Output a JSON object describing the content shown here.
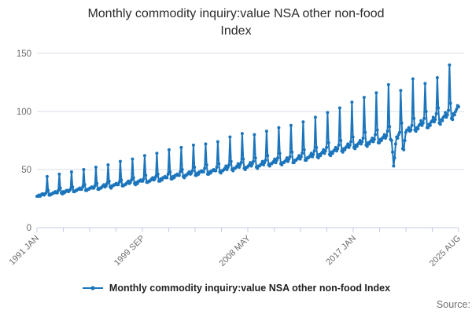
{
  "title": "Monthly commodity inquiry:value NSA other non-food Index",
  "legend": {
    "label": "Monthly commodity inquiry:value NSA other non-food Index"
  },
  "source_label": "Source:",
  "colors": {
    "series": "#1b75bc",
    "grid": "#d8deea",
    "axis": "#c4cee4",
    "axis_label": "#6b6b6b",
    "title_text": "#2b2b2b",
    "legend_text": "#222222",
    "source_text": "#6f6f6f"
  },
  "chart_data": {
    "type": "line",
    "title": "Monthly commodity inquiry:value NSA other non-food Index",
    "series_name": "Monthly commodity inquiry:value NSA other non-food Index",
    "frequency": "monthly",
    "start": "1991 JAN",
    "end": "2025 AUG",
    "xlabel": "",
    "ylabel": "",
    "ylim": [
      0,
      154
    ],
    "y_ticks": [
      0,
      50,
      100,
      150
    ],
    "x_tick_labels": [
      "1991 JAN",
      "1999 SEP",
      "2008 MAY",
      "2017 JAN",
      "2025 AUG"
    ],
    "x_tick_month_indices": [
      0,
      104,
      208,
      312,
      415
    ],
    "minor_tick_count": 17,
    "grid": "horizontal",
    "legend_position": "bottom",
    "values": [
      27,
      27,
      28,
      27,
      28,
      29,
      29,
      28,
      29,
      30,
      44,
      32,
      28,
      28,
      29,
      29,
      30,
      30,
      31,
      30,
      30,
      32,
      46,
      34,
      30,
      29,
      31,
      30,
      31,
      32,
      32,
      31,
      32,
      33,
      48,
      35,
      31,
      31,
      32,
      32,
      33,
      33,
      34,
      33,
      33,
      35,
      50,
      37,
      32,
      32,
      33,
      33,
      34,
      34,
      35,
      34,
      34,
      36,
      52,
      38,
      33,
      33,
      34,
      34,
      35,
      36,
      37,
      35,
      36,
      38,
      54,
      40,
      35,
      34,
      36,
      36,
      37,
      37,
      38,
      37,
      37,
      39,
      57,
      41,
      36,
      36,
      37,
      37,
      38,
      39,
      40,
      38,
      39,
      41,
      59,
      43,
      38,
      37,
      39,
      38,
      40,
      40,
      41,
      40,
      40,
      42,
      62,
      45,
      39,
      39,
      40,
      40,
      41,
      42,
      43,
      41,
      42,
      44,
      64,
      46,
      40,
      40,
      42,
      41,
      43,
      43,
      44,
      43,
      43,
      46,
      67,
      48,
      42,
      42,
      44,
      43,
      45,
      45,
      46,
      45,
      45,
      48,
      69,
      50,
      44,
      43,
      45,
      45,
      46,
      47,
      48,
      46,
      47,
      49,
      71,
      52,
      45,
      45,
      47,
      46,
      48,
      48,
      49,
      48,
      48,
      51,
      72,
      54,
      46,
      46,
      48,
      47,
      49,
      49,
      50,
      49,
      49,
      52,
      74,
      55,
      48,
      47,
      49,
      49,
      50,
      51,
      53,
      50,
      52,
      54,
      78,
      57,
      50,
      49,
      51,
      51,
      52,
      53,
      55,
      52,
      54,
      56,
      81,
      59,
      51,
      50,
      52,
      52,
      53,
      54,
      56,
      53,
      55,
      57,
      80,
      60,
      52,
      51,
      53,
      53,
      54,
      55,
      57,
      54,
      56,
      58,
      83,
      62,
      54,
      53,
      55,
      55,
      56,
      57,
      59,
      56,
      58,
      60,
      86,
      64,
      55,
      54,
      56,
      56,
      57,
      58,
      60,
      57,
      59,
      61,
      88,
      65,
      56,
      56,
      58,
      58,
      59,
      60,
      62,
      59,
      61,
      64,
      91,
      67,
      58,
      58,
      60,
      60,
      61,
      62,
      64,
      61,
      63,
      66,
      95,
      69,
      61,
      60,
      63,
      62,
      64,
      65,
      67,
      64,
      66,
      69,
      99,
      73,
      63,
      62,
      65,
      64,
      66,
      67,
      69,
      66,
      68,
      71,
      103,
      75,
      66,
      65,
      68,
      67,
      69,
      70,
      72,
      69,
      71,
      74,
      108,
      78,
      69,
      68,
      71,
      70,
      72,
      73,
      75,
      72,
      74,
      77,
      112,
      82,
      71,
      70,
      73,
      72,
      74,
      75,
      77,
      74,
      76,
      80,
      116,
      84,
      73,
      73,
      76,
      75,
      77,
      78,
      80,
      77,
      79,
      83,
      123,
      87,
      76,
      75,
      65,
      53,
      60,
      72,
      78,
      77,
      80,
      82,
      118,
      90,
      68,
      67,
      75,
      82,
      84,
      84,
      86,
      83,
      84,
      88,
      128,
      94,
      84,
      83,
      86,
      85,
      88,
      89,
      92,
      88,
      90,
      94,
      124,
      100,
      86,
      86,
      89,
      88,
      91,
      92,
      95,
      91,
      93,
      98,
      129,
      103,
      90,
      89,
      93,
      92,
      95,
      96,
      99,
      95,
      97,
      101,
      140,
      107,
      94,
      93,
      98,
      97,
      100,
      102,
      105,
      104
    ]
  }
}
